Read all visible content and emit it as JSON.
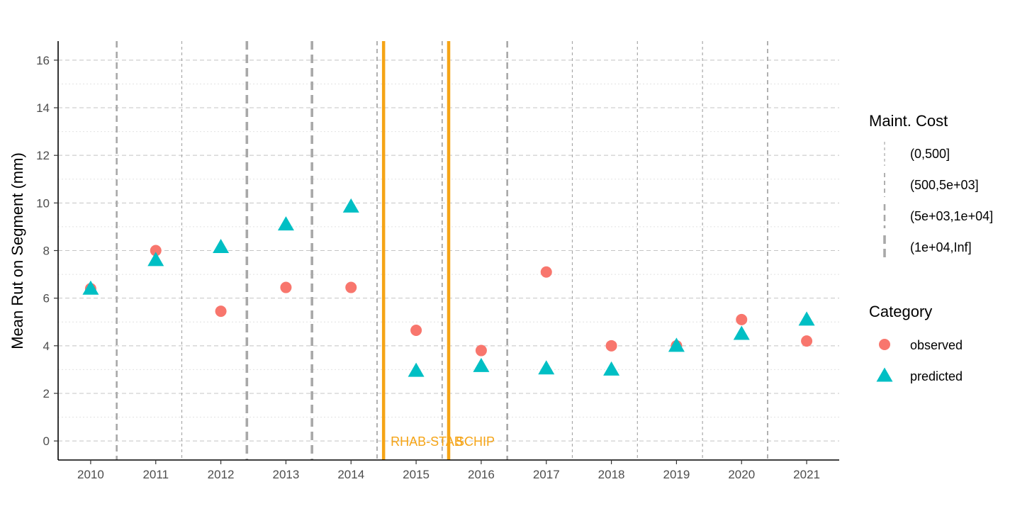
{
  "chart_data": {
    "type": "scatter",
    "title": "",
    "xlabel": "",
    "ylabel": "Mean Rut on Segment (mm)",
    "xlim": [
      2009.5,
      2021.5
    ],
    "ylim": [
      -0.8,
      16.8
    ],
    "x_ticks": [
      2010,
      2011,
      2012,
      2013,
      2014,
      2015,
      2016,
      2017,
      2018,
      2019,
      2020,
      2021
    ],
    "y_ticks": [
      0,
      2,
      4,
      6,
      8,
      10,
      12,
      14,
      16
    ],
    "grid": true,
    "series": [
      {
        "name": "observed",
        "marker": "circle",
        "color": "#F8766D",
        "points": [
          {
            "x": 2010,
            "y": 6.4
          },
          {
            "x": 2011,
            "y": 8.0
          },
          {
            "x": 2012,
            "y": 5.45
          },
          {
            "x": 2013,
            "y": 6.45
          },
          {
            "x": 2014,
            "y": 6.45
          },
          {
            "x": 2015,
            "y": 4.65
          },
          {
            "x": 2016,
            "y": 3.8
          },
          {
            "x": 2017,
            "y": 7.1
          },
          {
            "x": 2018,
            "y": 4.0
          },
          {
            "x": 2019,
            "y": 4.0
          },
          {
            "x": 2020,
            "y": 5.1
          },
          {
            "x": 2021,
            "y": 4.2
          }
        ]
      },
      {
        "name": "predicted",
        "marker": "triangle",
        "color": "#00BFC4",
        "points": [
          {
            "x": 2010,
            "y": 6.4
          },
          {
            "x": 2011,
            "y": 7.6
          },
          {
            "x": 2012,
            "y": 8.15
          },
          {
            "x": 2013,
            "y": 9.1
          },
          {
            "x": 2014,
            "y": 9.85
          },
          {
            "x": 2015,
            "y": 2.95
          },
          {
            "x": 2016,
            "y": 3.15
          },
          {
            "x": 2017,
            "y": 3.05
          },
          {
            "x": 2018,
            "y": 3.0
          },
          {
            "x": 2019,
            "y": 4.0
          },
          {
            "x": 2020,
            "y": 4.5
          },
          {
            "x": 2021,
            "y": 5.1
          }
        ]
      }
    ],
    "cost_lines": [
      {
        "x": 2010.4,
        "cost": "(5e+03,1e+04]"
      },
      {
        "x": 2011.4,
        "cost": "(0,500]"
      },
      {
        "x": 2012.4,
        "cost": "(1e+04,Inf]"
      },
      {
        "x": 2013.4,
        "cost": "(1e+04,Inf]"
      },
      {
        "x": 2014.4,
        "cost": "(500,5e+03]"
      },
      {
        "x": 2015.4,
        "cost": "(500,5e+03]"
      },
      {
        "x": 2016.4,
        "cost": "(5e+03,1e+04]"
      },
      {
        "x": 2017.4,
        "cost": "(0,500]"
      },
      {
        "x": 2018.4,
        "cost": "(0,500]"
      },
      {
        "x": 2019.4,
        "cost": "(0,500]"
      },
      {
        "x": 2020.4,
        "cost": "(500,5e+03]"
      }
    ],
    "treatments": [
      {
        "x": 2014.5,
        "label": "RHAB-STAB",
        "color": "#F5A416"
      },
      {
        "x": 2015.5,
        "label": "SCHIP",
        "color": "#F5A416"
      }
    ],
    "legend": {
      "placement": "right",
      "cost_title": "Maint. Cost",
      "cost_levels": [
        "(0,500]",
        "(500,5e+03]",
        "(5e+03,1e+04]",
        "(1e+04,Inf]"
      ],
      "category_title": "Category",
      "category_levels": [
        "observed",
        "predicted"
      ]
    }
  }
}
